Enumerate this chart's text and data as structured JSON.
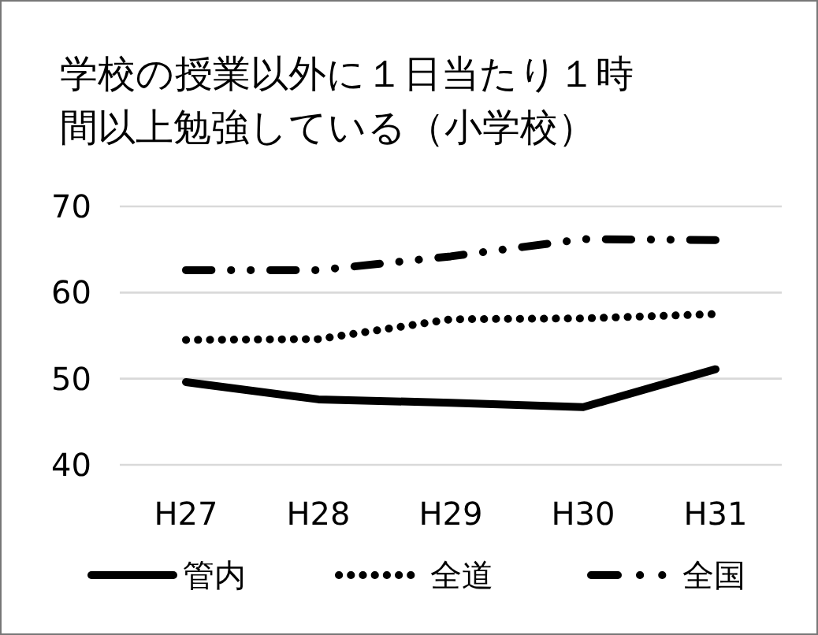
{
  "chart_data": {
    "type": "line",
    "title": "学校の授業以外に１日当たり１時間以上勉強している（小学校）",
    "categories": [
      "H27",
      "H28",
      "H29",
      "H30",
      "H31"
    ],
    "series": [
      {
        "name": "管内",
        "color": "#000000",
        "line_style": "solid",
        "values": [
          49.6,
          47.6,
          47.2,
          46.7,
          51.1
        ]
      },
      {
        "name": "全道",
        "color": "#000000",
        "line_style": "dotted",
        "values": [
          54.5,
          54.6,
          56.9,
          57.0,
          57.5
        ]
      },
      {
        "name": "全国",
        "color": "#000000",
        "line_style": "dashed",
        "values": [
          62.6,
          62.6,
          64.2,
          66.2,
          66.1
        ]
      }
    ],
    "ylim": [
      40,
      70
    ],
    "yticks": [
      40,
      50,
      60,
      70
    ],
    "grid": "y",
    "legend": "bottom",
    "marker": "none"
  }
}
